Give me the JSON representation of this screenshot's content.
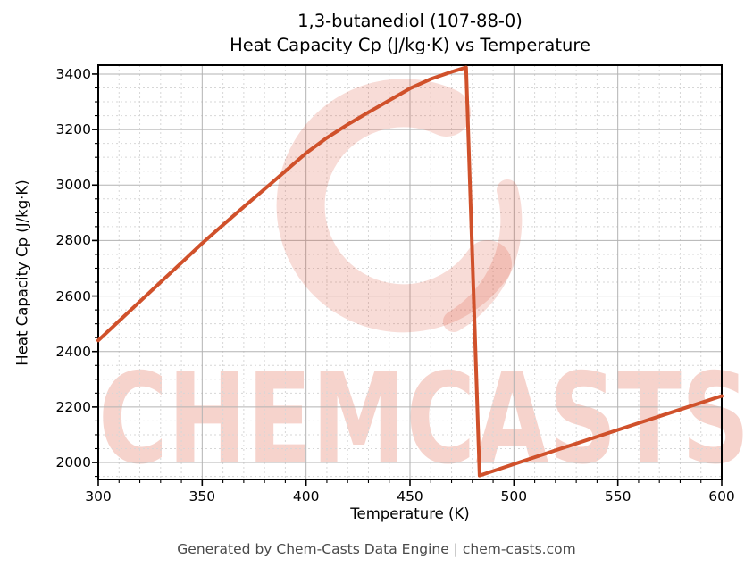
{
  "figure": {
    "title_line1": "1,3-butanediol (107-88-0)",
    "title_line2": "Heat Capacity Cp (J/kg·K) vs Temperature",
    "footer": "Generated by Chem-Casts Data Engine | chem-casts.com",
    "watermark_text": "CHEMCASTS"
  },
  "colors": {
    "line": "#d0512b",
    "watermark": "rgba(216,70,40,0.24)",
    "watermark_logo": "rgba(216,70,40,0.19)",
    "grid_major": "#b3b3b3",
    "grid_minor": "#d7d7d7",
    "axis_frame": "#000000",
    "footer_text": "#4a4a4a"
  },
  "chart_data": {
    "type": "line",
    "title": "1,3-butanediol (107-88-0)\nHeat Capacity Cp (J/kg·K) vs Temperature",
    "xlabel": "Temperature (K)",
    "ylabel": "Heat Capacity Cp (J/kg·K)",
    "xlim": [
      300,
      600
    ],
    "ylim": [
      1939,
      3432
    ],
    "xticks": [
      300,
      350,
      400,
      450,
      500,
      550,
      600
    ],
    "yticks": [
      2000,
      2200,
      2400,
      2600,
      2800,
      3000,
      3200,
      3400
    ],
    "x_minor_step": 10,
    "y_minor_step": 50,
    "grid": true,
    "legend_position": "none",
    "series": [
      {
        "name": "Heat Capacity Cp",
        "color": "#d0512b",
        "x": [
          300,
          310,
          320,
          330,
          340,
          350,
          360,
          370,
          380,
          390,
          400,
          410,
          420,
          430,
          440,
          450,
          460,
          470,
          477,
          483.5,
          500,
          520,
          540,
          560,
          580,
          600
        ],
        "y": [
          2440,
          2510,
          2580,
          2650,
          2720,
          2790,
          2856,
          2921,
          2985,
          3050,
          3115,
          3170,
          3218,
          3262,
          3305,
          3348,
          3382,
          3408,
          3424,
          1953,
          1994,
          2044,
          2093,
          2142,
          2191,
          2240
        ]
      }
    ],
    "annotations": {
      "discontinuity": "Cp drops sharply from 3424 at ~477 K to 1953 at ~483.5 K"
    }
  }
}
